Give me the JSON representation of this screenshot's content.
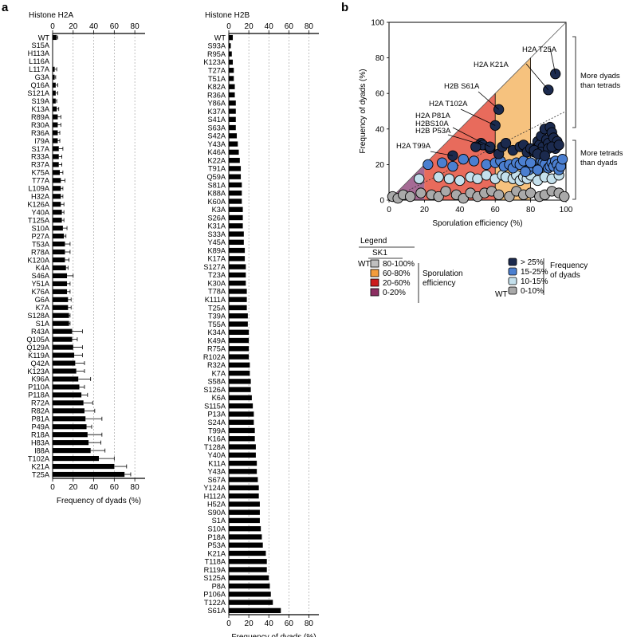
{
  "panel_labels": {
    "a": "a",
    "b": "b"
  },
  "chart_data": [
    {
      "type": "bar",
      "title": "Histone H2A",
      "xlabel": "Frequency of dyads (%)",
      "xlim": [
        0,
        90
      ],
      "ticks": [
        0,
        20,
        40,
        60,
        80
      ],
      "grid": true,
      "categories": [
        "WT",
        "S15A",
        "H113A",
        "L116A",
        "L117A",
        "G3A",
        "Q16A",
        "S121A",
        "S19A",
        "K13A",
        "R89A",
        "R30A",
        "R36A",
        "I79A",
        "S17A",
        "R33A",
        "R37A",
        "K75A",
        "T77A",
        "L109A",
        "H32A",
        "K126A",
        "Y40A",
        "T125A",
        "S10A",
        "P27A",
        "T53A",
        "R78A",
        "K120A",
        "K4A",
        "S46A",
        "Y51A",
        "K76A",
        "G6A",
        "K7A",
        "S128A",
        "S1A",
        "R43A",
        "Q105A",
        "Q129A",
        "K119A",
        "Q42A",
        "K123A",
        "K96A",
        "P110A",
        "P118A",
        "R72A",
        "R82A",
        "P81A",
        "P49A",
        "R18A",
        "H83A",
        "I88A",
        "T102A",
        "K21A",
        "T25A"
      ],
      "values": [
        4,
        0,
        0,
        0,
        2,
        2,
        3,
        3,
        3,
        4,
        5,
        5,
        5,
        5,
        6,
        6,
        6,
        7,
        8,
        8,
        8,
        8,
        9,
        9,
        10,
        11,
        12,
        12,
        12,
        13,
        14,
        14,
        14,
        15,
        15,
        16,
        16,
        19,
        19,
        20,
        21,
        22,
        23,
        25,
        26,
        28,
        30,
        31,
        32,
        33,
        34,
        35,
        37,
        45,
        60,
        70
      ],
      "errors": [
        1,
        0,
        0,
        0,
        2,
        1,
        2,
        2,
        1,
        2,
        3,
        3,
        2,
        2,
        4,
        3,
        3,
        3,
        4,
        2,
        2,
        3,
        2,
        2,
        4,
        2,
        5,
        5,
        4,
        2,
        6,
        3,
        3,
        3,
        3,
        1,
        1,
        10,
        5,
        9,
        8,
        9,
        8,
        12,
        5,
        6,
        9,
        10,
        16,
        5,
        14,
        12,
        14,
        15,
        12,
        6
      ]
    },
    {
      "type": "bar",
      "title": "Histone H2B",
      "xlabel": "Frequency of dyads (%)",
      "xlim": [
        0,
        90
      ],
      "ticks": [
        0,
        20,
        40,
        60,
        80
      ],
      "grid": true,
      "categories": [
        "WT",
        "S93A",
        "R95A",
        "K123A",
        "T27A",
        "T51A",
        "K82A",
        "R36A",
        "Y86A",
        "K37A",
        "S41A",
        "S63A",
        "S42A",
        "Y43A",
        "K46A",
        "K22A",
        "T91A",
        "Q59A",
        "S81A",
        "K88A",
        "K60A",
        "K3A",
        "S26A",
        "K31A",
        "S33A",
        "Y45A",
        "K89A",
        "K17A",
        "S127A",
        "T23A",
        "K30A",
        "T78A",
        "K111A",
        "T25A",
        "T39A",
        "T55A",
        "K34A",
        "K49A",
        "R75A",
        "R102A",
        "R32A",
        "K7A",
        "S58A",
        "S126A",
        "K6A",
        "S115A",
        "P13A",
        "S24A",
        "T99A",
        "K16A",
        "T128A",
        "Y40A",
        "K11A",
        "Y43A",
        "S67A",
        "Y124A",
        "H112A",
        "H52A",
        "S90A",
        "S1A",
        "S10A",
        "P18A",
        "P53A",
        "K21A",
        "T118A",
        "R119A",
        "S125A",
        "P8A",
        "P106A",
        "T122A",
        "S61A"
      ],
      "values": [
        4,
        2,
        3,
        4,
        5,
        5,
        6,
        6,
        7,
        7,
        7,
        7,
        8,
        9,
        10,
        11,
        12,
        12,
        13,
        13,
        13,
        14,
        14,
        14,
        15,
        15,
        16,
        16,
        17,
        17,
        17,
        18,
        18,
        18,
        19,
        19,
        20,
        20,
        20,
        20,
        21,
        21,
        22,
        22,
        23,
        24,
        25,
        25,
        26,
        26,
        27,
        27,
        28,
        28,
        29,
        30,
        30,
        31,
        31,
        31,
        32,
        33,
        34,
        37,
        38,
        38,
        40,
        41,
        42,
        44,
        52
      ]
    },
    {
      "type": "scatter",
      "xlabel": "Sporulation efficiency (%)",
      "ylabel": "Frequency of dyads (%)",
      "xlim": [
        0,
        100
      ],
      "ylim": [
        0,
        100
      ],
      "ticks": [
        0,
        20,
        40,
        60,
        80,
        100
      ],
      "annotations": [
        "H2A T25A",
        "H2A K21A",
        "H2B S61A",
        "H2A T102A",
        "H2A P81A",
        "H2BS10A",
        "H2B P53A",
        "H2A T99A"
      ],
      "brackets": [
        "More dyads than tetrads",
        "More tetrads than dyads"
      ],
      "series": [
        {
          "name": "> 25%",
          "color": "#1b2a4e",
          "x": [
            94,
            90,
            62,
            60,
            36,
            52,
            53,
            57,
            49,
            57,
            62,
            64,
            66,
            70,
            74,
            76,
            78,
            80,
            82,
            84,
            85,
            86,
            87,
            88,
            89,
            90,
            91,
            92,
            93,
            95,
            82,
            86,
            90,
            94,
            92,
            96,
            84,
            88
          ],
          "y": [
            71,
            62,
            51,
            42,
            25,
            32,
            31,
            29,
            30,
            30,
            26,
            30,
            32,
            28,
            30,
            31,
            27,
            29,
            27,
            33,
            31,
            36,
            30,
            40,
            34,
            32,
            41,
            38,
            35,
            33,
            28,
            27,
            29,
            29,
            30,
            31,
            26,
            25
          ]
        },
        {
          "name": "15-25%",
          "color": "#4b7fd0",
          "x": [
            22,
            30,
            36,
            42,
            48,
            55,
            60,
            63,
            65,
            68,
            70,
            72,
            74,
            76,
            79,
            81,
            83,
            85,
            86,
            87,
            88,
            90,
            91,
            92,
            93,
            94,
            95,
            96,
            97,
            98,
            80,
            84,
            77
          ],
          "y": [
            20,
            21,
            19,
            23,
            22,
            20,
            21,
            22,
            19,
            20,
            18,
            21,
            20,
            22,
            17,
            19,
            20,
            18,
            22,
            21,
            20,
            18,
            19,
            21,
            19,
            22,
            20,
            17,
            19,
            23,
            21,
            17,
            16
          ]
        },
        {
          "name": "10-15%",
          "color": "#c4e0ec",
          "x": [
            17,
            28,
            34,
            40,
            46,
            50,
            55,
            60,
            64,
            66,
            70,
            72,
            74,
            76,
            78,
            80,
            84,
            88,
            92,
            96
          ],
          "y": [
            12,
            13,
            12,
            11,
            13,
            12,
            14,
            12,
            14,
            13,
            12,
            14,
            11,
            13,
            12,
            14,
            11,
            13,
            12,
            14
          ]
        },
        {
          "name": "0-10%",
          "color": "#a9a9a9",
          "x": [
            2,
            5,
            8,
            12,
            18,
            24,
            28,
            32,
            38,
            42,
            46,
            50,
            54,
            58,
            62,
            68,
            72,
            76,
            80,
            85,
            88,
            92,
            96,
            99
          ],
          "y": [
            2,
            1,
            3,
            2,
            4,
            3,
            2,
            5,
            3,
            1,
            4,
            2,
            4,
            5,
            3,
            2,
            5,
            3,
            4,
            2,
            3,
            5,
            4,
            2
          ]
        }
      ]
    }
  ],
  "legend": {
    "title": "Legend",
    "strain": "SK1",
    "wt": "WT",
    "sporulation_title_1": "Sporulation",
    "sporulation_title_2": "efficiency",
    "dyad_title_1": "Frequency",
    "dyad_title_2": "of dyads",
    "sporulation_items": [
      {
        "label": "80-100%",
        "color": "#bfbfbf"
      },
      {
        "label": "60-80%",
        "color": "#f39c3b"
      },
      {
        "label": "20-60%",
        "color": "#cc1d1d"
      },
      {
        "label": "0-20%",
        "color": "#8c2e61"
      }
    ],
    "dyad_items": [
      {
        "label": "> 25%",
        "color": "#1b2a4e"
      },
      {
        "label": "15-25%",
        "color": "#4b7fd0"
      },
      {
        "label": "10-15%",
        "color": "#c4e0ec"
      },
      {
        "label": "0-10%",
        "color": "#a9a9a9"
      }
    ]
  }
}
